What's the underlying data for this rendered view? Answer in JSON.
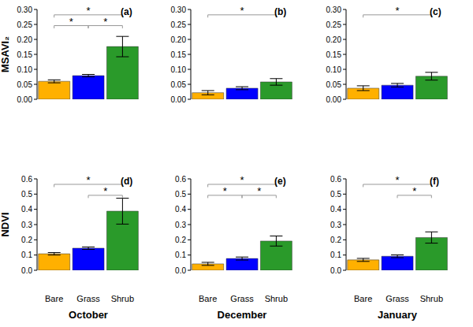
{
  "chart_data": [
    {
      "type": "bar",
      "title": "(a)",
      "ylabel": "MSAVI₂",
      "categories": [
        "Bare",
        "Grass",
        "Shrub"
      ],
      "values": [
        0.06,
        0.079,
        0.176
      ],
      "errors": [
        0.005,
        0.004,
        0.034
      ],
      "colors": [
        "#FFB000",
        "#0000FF",
        "#2A9A2A"
      ],
      "ylim": [
        0,
        0.3
      ],
      "yticks": [
        {
          "value": 0,
          "label": "0.00"
        },
        0.05,
        {
          "value": 0.1,
          "label": "0.10"
        },
        0.15,
        {
          "value": 0.2,
          "label": "0.20"
        },
        0.25,
        {
          "value": 0.3,
          "label": "0.30"
        }
      ],
      "tick_labels": "y",
      "significance": [
        {
          "pair": [
            "Bare",
            "Grass"
          ],
          "label": "*"
        },
        {
          "pair": [
            "Grass",
            "Shrub"
          ],
          "label": "*"
        },
        {
          "pair": [
            "Bare",
            "Shrub"
          ],
          "label": "*"
        }
      ]
    },
    {
      "type": "bar",
      "title": "(b)",
      "categories": [
        "Bare",
        "Grass",
        "Shrub"
      ],
      "values": [
        0.022,
        0.037,
        0.058
      ],
      "errors": [
        0.007,
        0.005,
        0.011
      ],
      "colors": [
        "#FFB000",
        "#0000FF",
        "#2A9A2A"
      ],
      "ylim": [
        0,
        0.3
      ],
      "yticks": [
        {
          "value": 0,
          "label": "0.00"
        },
        0.05,
        {
          "value": 0.1,
          "label": "0.10"
        },
        0.15,
        {
          "value": 0.2,
          "label": "0.20"
        },
        0.25,
        {
          "value": 0.3,
          "label": "0.30"
        }
      ],
      "tick_labels": "y",
      "significance": [
        {
          "pair": [
            "Bare",
            "Shrub"
          ],
          "label": "*"
        }
      ]
    },
    {
      "type": "bar",
      "title": "(c)",
      "categories": [
        "Bare",
        "Grass",
        "Shrub"
      ],
      "values": [
        0.037,
        0.047,
        0.077
      ],
      "errors": [
        0.008,
        0.006,
        0.013
      ],
      "colors": [
        "#FFB000",
        "#0000FF",
        "#2A9A2A"
      ],
      "ylim": [
        0,
        0.3
      ],
      "yticks": [
        {
          "value": 0,
          "label": "0.00"
        },
        0.05,
        {
          "value": 0.1,
          "label": "0.10"
        },
        0.15,
        {
          "value": 0.2,
          "label": "0.20"
        },
        0.25,
        {
          "value": 0.3,
          "label": "0.30"
        }
      ],
      "tick_labels": "y",
      "significance": [
        {
          "pair": [
            "Bare",
            "Shrub"
          ],
          "label": "*"
        }
      ]
    },
    {
      "type": "bar",
      "title": "(d)",
      "ylabel": "NDVI",
      "xlabel": "October",
      "categories": [
        "Bare",
        "Grass",
        "Shrub"
      ],
      "values": [
        0.108,
        0.145,
        0.388
      ],
      "errors": [
        0.008,
        0.008,
        0.085
      ],
      "colors": [
        "#FFB000",
        "#0000FF",
        "#2A9A2A"
      ],
      "ylim": [
        0,
        0.6
      ],
      "yticks": [
        {
          "value": 0,
          "label": "0.0"
        },
        0.1,
        0.2,
        0.3,
        0.4,
        0.5,
        0.6
      ],
      "significance": [
        {
          "pair": [
            "Grass",
            "Shrub"
          ],
          "label": "*"
        },
        {
          "pair": [
            "Bare",
            "Shrub"
          ],
          "label": "*"
        }
      ]
    },
    {
      "type": "bar",
      "title": "(e)",
      "xlabel": "December",
      "categories": [
        "Bare",
        "Grass",
        "Shrub"
      ],
      "values": [
        0.042,
        0.077,
        0.192
      ],
      "errors": [
        0.01,
        0.01,
        0.033
      ],
      "colors": [
        "#FFB000",
        "#0000FF",
        "#2A9A2A"
      ],
      "ylim": [
        0,
        0.6
      ],
      "yticks": [
        {
          "value": 0,
          "label": "0.0"
        },
        0.1,
        0.2,
        0.3,
        0.4,
        0.5,
        0.6
      ],
      "significance": [
        {
          "pair": [
            "Bare",
            "Grass"
          ],
          "label": "*"
        },
        {
          "pair": [
            "Grass",
            "Shrub"
          ],
          "label": "*"
        },
        {
          "pair": [
            "Bare",
            "Shrub"
          ],
          "label": "*"
        }
      ]
    },
    {
      "type": "bar",
      "title": "(f)",
      "xlabel": "January",
      "categories": [
        "Bare",
        "Grass",
        "Shrub"
      ],
      "values": [
        0.068,
        0.092,
        0.215
      ],
      "errors": [
        0.01,
        0.009,
        0.037
      ],
      "colors": [
        "#FFB000",
        "#0000FF",
        "#2A9A2A"
      ],
      "ylim": [
        0,
        0.6
      ],
      "yticks": [
        {
          "value": 0,
          "label": "0.0"
        },
        0.1,
        0.2,
        0.3,
        0.4,
        0.5,
        0.6
      ],
      "significance": [
        {
          "pair": [
            "Grass",
            "Shrub"
          ],
          "label": "*"
        },
        {
          "pair": [
            "Bare",
            "Shrub"
          ],
          "label": "*"
        }
      ]
    }
  ]
}
